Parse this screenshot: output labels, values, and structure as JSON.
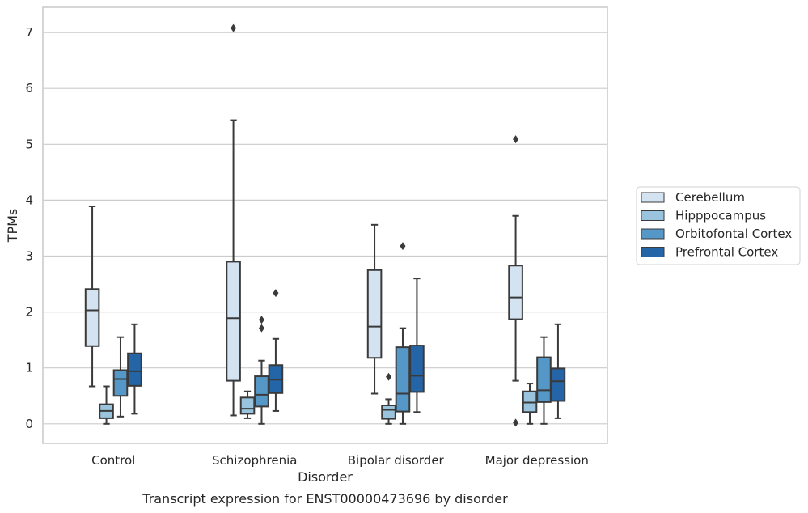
{
  "chart_data": {
    "type": "box",
    "title": "",
    "caption": "Transcript expression for ENST00000473696 by disorder",
    "xlabel": "Disorder",
    "ylabel": "TPMs",
    "ylim": [
      -0.35,
      7.45
    ],
    "yticks": [
      0,
      1,
      2,
      3,
      4,
      5,
      6,
      7
    ],
    "grid": true,
    "legend_placement": "right",
    "categories": [
      "Control",
      "Schizophrenia",
      "Bipolar disorder",
      "Major depression"
    ],
    "series": [
      {
        "name": "Cerebellum",
        "color": "#d4e3f2",
        "boxes": [
          {
            "whisker_low": 0.67,
            "q1": 1.39,
            "median": 2.03,
            "q3": 2.41,
            "whisker_high": 3.89,
            "outliers": []
          },
          {
            "whisker_low": 0.15,
            "q1": 0.77,
            "median": 1.89,
            "q3": 2.9,
            "whisker_high": 5.43,
            "outliers": [
              7.08
            ]
          },
          {
            "whisker_low": 0.54,
            "q1": 1.18,
            "median": 1.74,
            "q3": 2.75,
            "whisker_high": 3.56,
            "outliers": []
          },
          {
            "whisker_low": 0.77,
            "q1": 1.87,
            "median": 2.26,
            "q3": 2.83,
            "whisker_high": 3.72,
            "outliers": [
              5.09,
              0.02
            ]
          }
        ]
      },
      {
        "name": "Hipppocampus",
        "color": "#9ac4de",
        "boxes": [
          {
            "whisker_low": 0.0,
            "q1": 0.1,
            "median": 0.23,
            "q3": 0.35,
            "whisker_high": 0.67,
            "outliers": []
          },
          {
            "whisker_low": 0.1,
            "q1": 0.18,
            "median": 0.27,
            "q3": 0.47,
            "whisker_high": 0.58,
            "outliers": []
          },
          {
            "whisker_low": 0.0,
            "q1": 0.09,
            "median": 0.25,
            "q3": 0.33,
            "whisker_high": 0.44,
            "outliers": [
              0.84
            ]
          },
          {
            "whisker_low": 0.0,
            "q1": 0.21,
            "median": 0.38,
            "q3": 0.58,
            "whisker_high": 0.72,
            "outliers": []
          }
        ]
      },
      {
        "name": "Orbitofontal Cortex",
        "color": "#5597c7",
        "boxes": [
          {
            "whisker_low": 0.13,
            "q1": 0.5,
            "median": 0.8,
            "q3": 0.96,
            "whisker_high": 1.55,
            "outliers": []
          },
          {
            "whisker_low": 0.0,
            "q1": 0.31,
            "median": 0.52,
            "q3": 0.85,
            "whisker_high": 1.13,
            "outliers": [
              1.86,
              1.71
            ]
          },
          {
            "whisker_low": 0.0,
            "q1": 0.22,
            "median": 0.54,
            "q3": 1.37,
            "whisker_high": 1.71,
            "outliers": [
              3.18
            ]
          },
          {
            "whisker_low": 0.0,
            "q1": 0.39,
            "median": 0.6,
            "q3": 1.19,
            "whisker_high": 1.55,
            "outliers": []
          }
        ]
      },
      {
        "name": "Prefrontal Cortex",
        "color": "#2465a8",
        "boxes": [
          {
            "whisker_low": 0.18,
            "q1": 0.68,
            "median": 0.94,
            "q3": 1.26,
            "whisker_high": 1.78,
            "outliers": []
          },
          {
            "whisker_low": 0.23,
            "q1": 0.55,
            "median": 0.79,
            "q3": 1.05,
            "whisker_high": 1.52,
            "outliers": [
              2.34
            ]
          },
          {
            "whisker_low": 0.21,
            "q1": 0.57,
            "median": 0.86,
            "q3": 1.4,
            "whisker_high": 2.6,
            "outliers": []
          },
          {
            "whisker_low": 0.1,
            "q1": 0.41,
            "median": 0.76,
            "q3": 0.99,
            "whisker_high": 1.78,
            "outliers": []
          }
        ]
      }
    ]
  }
}
